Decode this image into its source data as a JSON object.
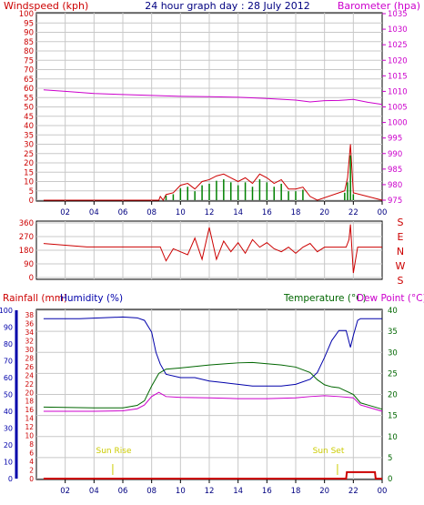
{
  "header": {
    "windspeed_label": "Windspeed (kph)",
    "title": "24 hour graph day : 28 July 2012",
    "barometer_label": "Barometer (hpa)"
  },
  "direction_labels": [
    "S",
    "E",
    "N",
    "W",
    "S"
  ],
  "bottom_header": {
    "rainfall_label": "Rainfall (mm)",
    "humidity_label": "Humidity (%)",
    "temperature_label": "Temperature (°C)",
    "dewpoint_label": "Dew Point (°C)"
  },
  "annotations": {
    "sun_rise": "Sun Rise",
    "sun_set": "Sun Set"
  },
  "colors": {
    "wind": "#cc0000",
    "gust": "#008000",
    "avg_wind": "#0000cc",
    "barometer": "#cc00cc",
    "direction": "#cc0000",
    "humidity": "#0000aa",
    "temperature": "#006600",
    "dewpoint": "#cc00cc",
    "rain": "#cc0000",
    "sun": "#cccc00"
  },
  "x_ticks": [
    "02",
    "04",
    "06",
    "08",
    "10",
    "12",
    "14",
    "16",
    "18",
    "20",
    "22",
    "00"
  ],
  "chart_data": [
    {
      "type": "line",
      "title": "24 hour graph day : 28 July 2012",
      "ylabel": "Windspeed (kph)",
      "y2label": "Barometer (hpa)",
      "ylim": [
        0,
        100
      ],
      "y2lim": [
        975,
        1035
      ],
      "y_ticks": [
        0,
        5,
        10,
        15,
        20,
        25,
        30,
        35,
        40,
        45,
        50,
        55,
        60,
        65,
        70,
        75,
        80,
        85,
        90,
        95,
        100
      ],
      "y2_ticks": [
        975,
        980,
        985,
        990,
        995,
        1000,
        1005,
        1010,
        1015,
        1020,
        1025,
        1030,
        1035
      ],
      "series": [
        {
          "name": "Barometer (hpa)",
          "axis": "right",
          "x": [
            0.5,
            2,
            4,
            6,
            8,
            10,
            12,
            14,
            16,
            18,
            19,
            20,
            21,
            22,
            23,
            24
          ],
          "values": [
            1010.5,
            1010,
            1009.3,
            1009,
            1008.7,
            1008.4,
            1008.3,
            1008.1,
            1007.7,
            1007.2,
            1006.6,
            1007.0,
            1007.1,
            1007.4,
            1006.5,
            1005.8
          ]
        },
        {
          "name": "Windspeed (kph)",
          "axis": "left",
          "x": [
            0.5,
            8.5,
            8.6,
            8.8,
            9.0,
            9.5,
            10,
            10.5,
            11,
            11.5,
            12,
            12.5,
            13,
            13.5,
            14,
            14.5,
            15,
            15.5,
            16,
            16.5,
            17,
            17.5,
            18,
            18.5,
            19,
            19.5,
            21.4,
            21.6,
            21.8,
            22,
            24
          ],
          "values": [
            0,
            0,
            2,
            0,
            3,
            4,
            8,
            9,
            6,
            10,
            11,
            13,
            14,
            12,
            10,
            12,
            9,
            14,
            12,
            9,
            11,
            6,
            6,
            7,
            2,
            0,
            5,
            12,
            30,
            4,
            0
          ]
        }
      ]
    },
    {
      "type": "line",
      "ylabel": "Wind direction",
      "ylim": [
        0,
        360
      ],
      "y_ticks": [
        0,
        90,
        180,
        270,
        360
      ],
      "series": [
        {
          "name": "Wind direction",
          "x": [
            0.5,
            3.5,
            8.6,
            9.0,
            9.5,
            10,
            10.5,
            11,
            11.5,
            12,
            12.5,
            13,
            13.5,
            14,
            14.5,
            15,
            15.5,
            16,
            16.5,
            17,
            17.5,
            18,
            18.5,
            19,
            19.5,
            20,
            21,
            21.5,
            21.7,
            21.8,
            22,
            22.3,
            24
          ],
          "values": [
            224,
            202,
            202,
            110,
            190,
            170,
            150,
            260,
            120,
            330,
            120,
            240,
            170,
            230,
            160,
            250,
            200,
            230,
            190,
            170,
            200,
            160,
            200,
            225,
            170,
            200,
            200,
            200,
            250,
            350,
            30,
            200,
            200
          ]
        }
      ]
    },
    {
      "type": "line",
      "ylabel": "Humidity (%)",
      "y2label": "Temperature (°C) / Dew Point (°C)",
      "ylim": [
        0,
        100
      ],
      "rain_lim": [
        0,
        38
      ],
      "y2lim": [
        0,
        40
      ],
      "y_ticks": [
        0,
        10,
        20,
        30,
        40,
        50,
        60,
        70,
        80,
        90,
        100
      ],
      "rain_ticks": [
        0,
        2,
        4,
        6,
        8,
        10,
        12,
        14,
        16,
        18,
        20,
        22,
        24,
        26,
        28,
        30,
        32,
        34,
        36,
        38
      ],
      "y2_ticks": [
        0,
        5,
        10,
        15,
        20,
        25,
        30,
        35,
        40
      ],
      "series": [
        {
          "name": "Humidity (%)",
          "axis": "humidity",
          "x": [
            0.5,
            3,
            6,
            7,
            7.5,
            8,
            8.3,
            8.6,
            9,
            10,
            11,
            12,
            13,
            14,
            15,
            16,
            17,
            18,
            19,
            19.5,
            20,
            20.5,
            21,
            21.5,
            21.8,
            22,
            22.3,
            22.5,
            24
          ],
          "values": [
            95,
            95,
            96,
            95.5,
            94,
            87,
            75,
            68,
            62,
            60,
            60,
            58,
            57,
            56,
            55,
            55,
            55,
            56,
            59,
            63,
            72,
            82,
            88,
            88,
            78,
            85,
            94,
            95,
            95
          ]
        },
        {
          "name": "Temperature (°C)",
          "axis": "temp",
          "x": [
            0.5,
            4,
            6,
            7,
            7.5,
            8,
            8.5,
            9,
            10,
            12,
            14,
            15,
            16,
            17,
            18,
            19,
            19.5,
            20,
            20.5,
            21,
            22,
            22.5,
            23,
            24
          ],
          "values": [
            17,
            16.8,
            16.8,
            17.4,
            18.5,
            22,
            25,
            26,
            26.3,
            27,
            27.5,
            27.6,
            27.3,
            27,
            26.5,
            25.2,
            23.5,
            22.3,
            21.8,
            21.6,
            20,
            18,
            17.5,
            16.5
          ]
        },
        {
          "name": "Dew Point (°C)",
          "axis": "temp",
          "x": [
            0.5,
            4,
            6,
            7,
            7.5,
            8,
            8.5,
            9,
            10,
            12,
            14,
            16,
            18,
            19,
            20,
            21,
            22,
            22.5,
            23,
            24
          ],
          "values": [
            16,
            16,
            16.1,
            16.6,
            17.5,
            19.5,
            20.5,
            19.5,
            19.3,
            19.2,
            19,
            19,
            19.2,
            19.5,
            19.7,
            19.5,
            19.2,
            17.5,
            17,
            16
          ]
        },
        {
          "name": "Rainfall (mm)",
          "axis": "rain",
          "x": [
            0.5,
            21.5,
            21.55,
            23.5,
            23.55,
            24
          ],
          "values": [
            0,
            0,
            1.5,
            1.5,
            0,
            0
          ]
        }
      ],
      "markers": [
        {
          "x": 5.3,
          "label": "Sun Rise"
        },
        {
          "x": 20.9,
          "label": "Sun Set"
        }
      ]
    }
  ]
}
